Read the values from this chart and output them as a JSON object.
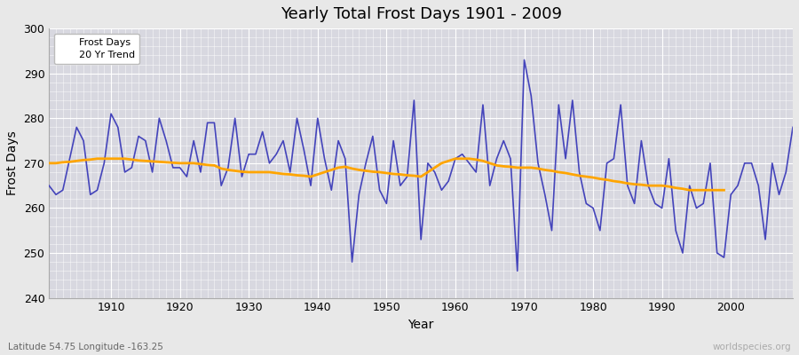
{
  "title": "Yearly Total Frost Days 1901 - 2009",
  "xlabel": "Year",
  "ylabel": "Frost Days",
  "subtitle": "Latitude 54.75 Longitude -163.25",
  "watermark": "worldspecies.org",
  "ylim": [
    240,
    300
  ],
  "yticks": [
    240,
    250,
    260,
    270,
    280,
    290,
    300
  ],
  "xlim": [
    1901,
    2009
  ],
  "xticks": [
    1910,
    1920,
    1930,
    1940,
    1950,
    1960,
    1970,
    1980,
    1990,
    2000
  ],
  "line_color": "#4444bb",
  "trend_color": "#FFA500",
  "bg_color": "#e8e8e8",
  "plot_bg": "#d8d8e0",
  "grid_major_color": "#ffffff",
  "grid_minor_color": "#ffffff",
  "years": [
    1901,
    1902,
    1903,
    1904,
    1905,
    1906,
    1907,
    1908,
    1909,
    1910,
    1911,
    1912,
    1913,
    1914,
    1915,
    1916,
    1917,
    1918,
    1919,
    1920,
    1921,
    1922,
    1923,
    1924,
    1925,
    1926,
    1927,
    1928,
    1929,
    1930,
    1931,
    1932,
    1933,
    1934,
    1935,
    1936,
    1937,
    1938,
    1939,
    1940,
    1941,
    1942,
    1943,
    1944,
    1945,
    1946,
    1947,
    1948,
    1949,
    1950,
    1951,
    1952,
    1953,
    1954,
    1955,
    1956,
    1957,
    1958,
    1959,
    1960,
    1961,
    1962,
    1963,
    1964,
    1965,
    1966,
    1967,
    1968,
    1969,
    1970,
    1971,
    1972,
    1973,
    1974,
    1975,
    1976,
    1977,
    1978,
    1979,
    1980,
    1981,
    1982,
    1983,
    1984,
    1985,
    1986,
    1987,
    1988,
    1989,
    1990,
    1991,
    1992,
    1993,
    1994,
    1995,
    1996,
    1997,
    1998,
    1999,
    2000,
    2001,
    2002,
    2003,
    2004,
    2005,
    2006,
    2007,
    2008,
    2009
  ],
  "frost_days": [
    265,
    263,
    264,
    271,
    278,
    275,
    263,
    264,
    270,
    281,
    278,
    268,
    269,
    276,
    275,
    268,
    280,
    275,
    269,
    269,
    267,
    275,
    268,
    279,
    279,
    265,
    269,
    280,
    267,
    272,
    272,
    277,
    270,
    272,
    275,
    268,
    280,
    273,
    265,
    280,
    271,
    264,
    275,
    271,
    248,
    263,
    270,
    276,
    264,
    261,
    275,
    265,
    267,
    284,
    253,
    270,
    268,
    264,
    266,
    271,
    272,
    270,
    268,
    283,
    265,
    271,
    275,
    271,
    246,
    293,
    285,
    270,
    263,
    255,
    283,
    271,
    284,
    268,
    261,
    260,
    255,
    270,
    271,
    283,
    265,
    261,
    275,
    265,
    261,
    260,
    271,
    255,
    250,
    265,
    260,
    261,
    270,
    250,
    249,
    263,
    265,
    270,
    270,
    265,
    253,
    270,
    263,
    268,
    278
  ],
  "trend": [
    270.0,
    270.0,
    270.2,
    270.3,
    270.5,
    270.7,
    270.8,
    271.0,
    271.0,
    271.0,
    271.0,
    271.0,
    270.8,
    270.6,
    270.5,
    270.4,
    270.3,
    270.2,
    270.1,
    270.0,
    270.0,
    270.0,
    269.8,
    269.6,
    269.5,
    268.8,
    268.5,
    268.3,
    268.1,
    268.0,
    268.0,
    268.0,
    268.0,
    267.8,
    267.6,
    267.5,
    267.3,
    267.2,
    267.0,
    267.5,
    268.0,
    268.5,
    269.0,
    269.2,
    268.8,
    268.5,
    268.3,
    268.1,
    268.0,
    267.8,
    267.6,
    267.5,
    267.3,
    267.2,
    267.0,
    268.0,
    269.0,
    270.0,
    270.5,
    271.0,
    271.0,
    271.0,
    270.8,
    270.5,
    270.0,
    269.5,
    269.3,
    269.2,
    269.0,
    269.0,
    269.0,
    268.8,
    268.5,
    268.3,
    268.0,
    267.8,
    267.5,
    267.2,
    267.0,
    266.8,
    266.5,
    266.3,
    266.0,
    265.8,
    265.5,
    265.3,
    265.2,
    265.0,
    265.0,
    265.0,
    264.8,
    264.5,
    264.3,
    264.0,
    264.0,
    264.0,
    264.0,
    264.0,
    264.0
  ]
}
